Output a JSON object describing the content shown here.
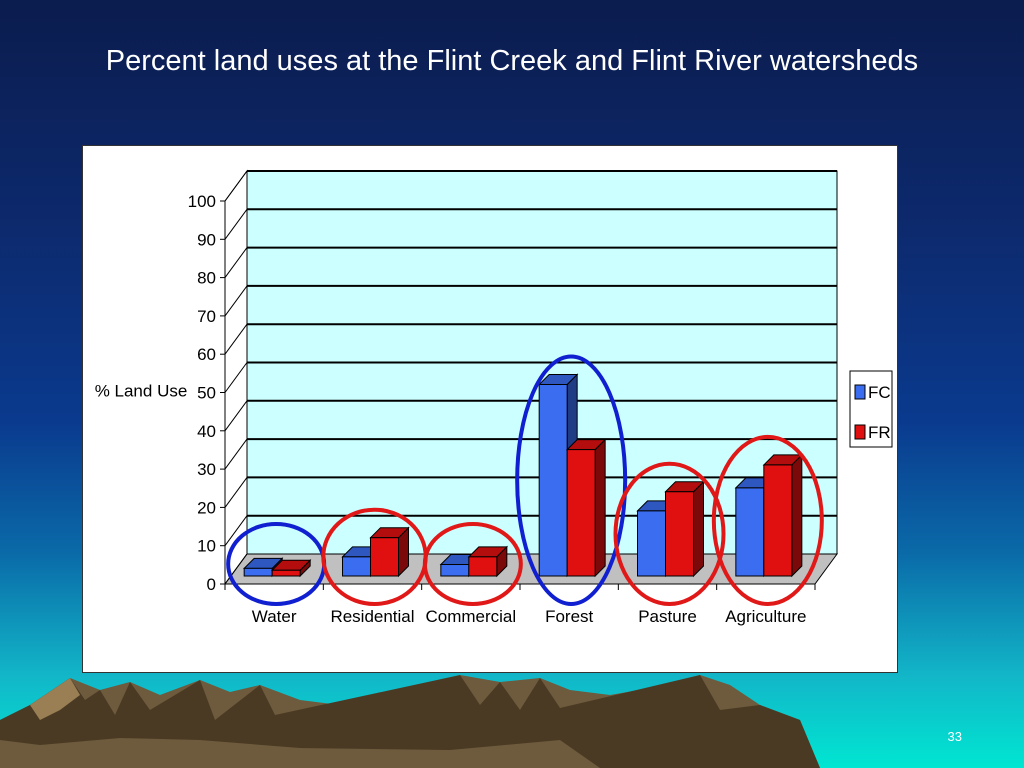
{
  "slide": {
    "title": "Percent land uses at the Flint Creek and Flint River watersheds",
    "page_number": "33"
  },
  "colors": {
    "fc": "#3a6df0",
    "fr": "#e01010",
    "plot_background": "#ccffff",
    "circle_blue": "#1020d0",
    "circle_red": "#e01818"
  },
  "chart_data": {
    "type": "bar",
    "title": "",
    "xlabel": "",
    "ylabel": "% Land Use",
    "categories": [
      "Water",
      "Residential",
      "Commercial",
      "Forest",
      "Pasture",
      "Agriculture"
    ],
    "series": [
      {
        "name": "FC",
        "values": [
          2,
          5,
          3,
          50,
          17,
          23
        ]
      },
      {
        "name": "FR",
        "values": [
          1.5,
          10,
          5,
          33,
          22,
          29
        ]
      }
    ],
    "ylim": [
      0,
      100
    ],
    "yticks": [
      0,
      10,
      20,
      30,
      40,
      50,
      60,
      70,
      80,
      90,
      100
    ],
    "grid": true,
    "legend_position": "right",
    "three_d": true,
    "highlight_circles": [
      {
        "category": "Water",
        "color": "blue"
      },
      {
        "category": "Residential",
        "color": "red"
      },
      {
        "category": "Commercial",
        "color": "red"
      },
      {
        "category": "Forest",
        "color": "blue"
      },
      {
        "category": "Pasture",
        "color": "red"
      },
      {
        "category": "Agriculture",
        "color": "red"
      }
    ]
  }
}
